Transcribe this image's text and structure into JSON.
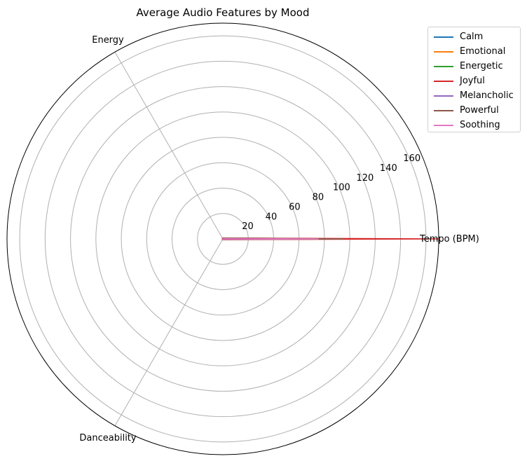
{
  "chart_data": {
    "type": "radar",
    "title": "Average Audio Features by Mood",
    "axes": [
      "Tempo (BPM)",
      "Energy",
      "Danceability"
    ],
    "radial_ticks": [
      20,
      40,
      60,
      80,
      100,
      120,
      140,
      160
    ],
    "rlim": [
      0,
      170
    ],
    "grid": true,
    "legend_position": "top-right (outside)",
    "series": [
      {
        "name": "Calm",
        "color": "#1f77b4",
        "values": [
          85,
          0.3,
          0.45
        ]
      },
      {
        "name": "Emotional",
        "color": "#ff7f0e",
        "values": [
          100,
          0.5,
          0.5
        ]
      },
      {
        "name": "Energetic",
        "color": "#2ca02c",
        "values": [
          105,
          0.75,
          0.65
        ]
      },
      {
        "name": "Joyful",
        "color": "#d62728",
        "values": [
          170,
          0.8,
          0.7
        ]
      },
      {
        "name": "Melancholic",
        "color": "#9467bd",
        "values": [
          80,
          0.35,
          0.4
        ]
      },
      {
        "name": "Powerful",
        "color": "#8c564b",
        "values": [
          95,
          0.85,
          0.6
        ]
      },
      {
        "name": "Soothing",
        "color": "#e377c2",
        "values": [
          75,
          0.25,
          0.4
        ]
      }
    ]
  }
}
